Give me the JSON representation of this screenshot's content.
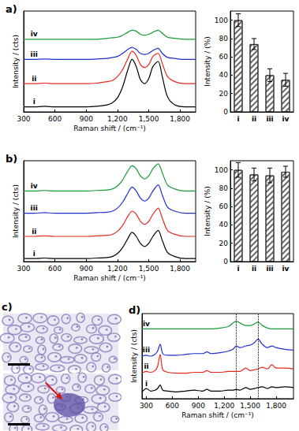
{
  "chart_data": [
    {
      "type": "line",
      "title": "a)",
      "xlabel": "Raman shift / (cm⁻¹)",
      "ylabel": "Intensity / (cts)",
      "x": [
        300,
        400,
        500,
        600,
        700,
        800,
        900,
        1000,
        1100,
        1150,
        1200,
        1250,
        1300,
        1340,
        1380,
        1420,
        1460,
        1500,
        1540,
        1590,
        1630,
        1680,
        1750,
        1850,
        1950
      ],
      "xlim": [
        300,
        1950
      ],
      "xticks": [
        300,
        600,
        900,
        1200,
        1500,
        1800
      ],
      "ylim": [
        0,
        100
      ],
      "tick_labels": "x",
      "grid": false,
      "series": [
        {
          "name": "i",
          "color": "#000000",
          "values": [
            5,
            5,
            5.5,
            5,
            5,
            5,
            5,
            5.5,
            7,
            9,
            14,
            25,
            42,
            52,
            45,
            32,
            28,
            33,
            45,
            50,
            35,
            15,
            7,
            5,
            5
          ]
        },
        {
          "name": "ii",
          "color": "#e8281e",
          "values": [
            28,
            28,
            28.5,
            28,
            28,
            28,
            28,
            28.5,
            30,
            31,
            35,
            42,
            53,
            60,
            56,
            47,
            44,
            47,
            55,
            58,
            48,
            35,
            30,
            28,
            28
          ]
        },
        {
          "name": "iii",
          "color": "#1f2fd0",
          "values": [
            52,
            52,
            52.5,
            52,
            52,
            52,
            52,
            52.5,
            53,
            54,
            55,
            58,
            62,
            64,
            62,
            58,
            57,
            58,
            61,
            63,
            58,
            54,
            53,
            52,
            52
          ]
        },
        {
          "name": "iv",
          "color": "#1a9a3a",
          "values": [
            72,
            72,
            72,
            72,
            72,
            72,
            72,
            72,
            73,
            73.5,
            74,
            76,
            79,
            81,
            80,
            77,
            76,
            77,
            79,
            81,
            78,
            74,
            73,
            72,
            72
          ]
        }
      ]
    },
    {
      "type": "bar",
      "ylabel": "Intensity / (%)",
      "categories": [
        "i",
        "ii",
        "iii",
        "iv"
      ],
      "values": [
        100,
        74,
        40,
        35
      ],
      "errors": [
        7,
        6,
        7,
        7
      ],
      "color": "#ffffff",
      "ylim": [
        0,
        110
      ],
      "yticks": [
        0,
        20,
        40,
        60,
        80,
        100
      ],
      "grid": false
    },
    {
      "type": "line",
      "title": "b)",
      "xlabel": "Raman shift / (cm⁻¹)",
      "ylabel": "Intensity / (cts)",
      "x": [
        300,
        400,
        500,
        600,
        700,
        800,
        900,
        1000,
        1100,
        1150,
        1200,
        1250,
        1300,
        1340,
        1380,
        1420,
        1460,
        1500,
        1540,
        1590,
        1630,
        1680,
        1750,
        1850,
        1950
      ],
      "xlim": [
        300,
        1950
      ],
      "xticks": [
        300,
        600,
        900,
        1200,
        1500,
        1800
      ],
      "ylim": [
        0,
        100
      ],
      "tick_labels": "x",
      "grid": false,
      "series": [
        {
          "name": "i",
          "color": "#000000",
          "values": [
            3,
            3,
            3.5,
            3,
            3,
            3,
            3,
            3.5,
            4,
            5,
            8,
            14,
            23,
            29,
            25,
            18,
            15,
            18,
            25,
            31,
            21,
            9,
            5,
            3,
            3
          ]
        },
        {
          "name": "ii",
          "color": "#e8281e",
          "values": [
            25,
            25,
            25.5,
            25,
            25,
            25,
            25,
            25.5,
            26,
            27,
            30,
            36,
            45,
            50,
            47,
            40,
            37,
            40,
            47,
            53,
            43,
            31,
            27,
            25,
            25
          ]
        },
        {
          "name": "iii",
          "color": "#1f2fd0",
          "values": [
            48,
            48,
            48.5,
            48,
            48,
            48,
            48,
            48.5,
            49,
            50,
            53,
            59,
            68,
            74,
            70,
            63,
            60,
            63,
            70,
            76,
            66,
            54,
            50,
            48,
            48
          ]
        },
        {
          "name": "iv",
          "color": "#1a9a3a",
          "values": [
            70,
            70,
            70.5,
            70,
            70,
            70,
            70,
            70.5,
            71,
            72,
            75,
            81,
            90,
            95,
            92,
            85,
            82,
            85,
            92,
            97,
            88,
            76,
            72,
            70,
            70
          ]
        }
      ]
    },
    {
      "type": "bar",
      "ylabel": "Intensity / (%)",
      "categories": [
        "i",
        "ii",
        "iii",
        "iv"
      ],
      "values": [
        100,
        95,
        94,
        98
      ],
      "errors": [
        8,
        7,
        8,
        6
      ],
      "color": "#ffffff",
      "ylim": [
        0,
        110
      ],
      "yticks": [
        0,
        20,
        40,
        60,
        80,
        100
      ],
      "grid": false
    },
    {
      "type": "image",
      "title": "c)"
    },
    {
      "type": "line",
      "title": "d)",
      "xlabel": "Raman shift / (cm⁻¹)",
      "ylabel": "Intensity / (cts)",
      "x": [
        250,
        300,
        350,
        400,
        430,
        460,
        490,
        550,
        650,
        750,
        850,
        950,
        1000,
        1050,
        1150,
        1250,
        1300,
        1340,
        1380,
        1450,
        1500,
        1550,
        1590,
        1640,
        1700,
        1750,
        1800,
        1900,
        2000
      ],
      "xlim": [
        250,
        2000
      ],
      "xticks": [
        300,
        600,
        900,
        1200,
        1500,
        1800
      ],
      "ylim": [
        0,
        100
      ],
      "tick_labels": "x",
      "grid": false,
      "vlines": [
        1340,
        1590
      ],
      "series": [
        {
          "name": "i",
          "color": "#000000",
          "values": [
            8,
            12,
            9,
            10,
            12,
            16,
            10,
            9,
            8,
            9,
            10,
            9,
            11,
            9,
            9,
            10,
            10,
            11,
            10,
            13,
            11,
            12,
            13,
            14,
            12,
            14,
            13,
            14,
            13
          ]
        },
        {
          "name": "ii",
          "color": "#e8281e",
          "values": [
            30,
            32,
            31,
            33,
            38,
            52,
            34,
            31,
            30,
            30,
            31,
            31,
            33,
            31,
            31,
            32,
            32,
            32,
            32,
            36,
            33,
            34,
            35,
            37,
            35,
            40,
            36,
            36,
            35
          ]
        },
        {
          "name": "iii",
          "color": "#1f2fd0",
          "values": [
            50,
            51,
            50,
            52,
            56,
            64,
            53,
            51,
            51,
            52,
            53,
            53,
            55,
            53,
            54,
            56,
            58,
            62,
            60,
            62,
            63,
            66,
            70,
            64,
            60,
            62,
            60,
            58,
            57
          ]
        },
        {
          "name": "iv",
          "color": "#1a9a3a",
          "values": [
            82,
            82,
            82,
            82,
            82,
            82,
            82,
            82,
            82,
            82,
            82,
            82,
            82,
            82,
            83,
            85,
            89,
            91,
            89,
            86,
            86,
            88,
            90,
            86,
            83,
            82,
            82,
            82,
            82
          ]
        }
      ]
    }
  ]
}
